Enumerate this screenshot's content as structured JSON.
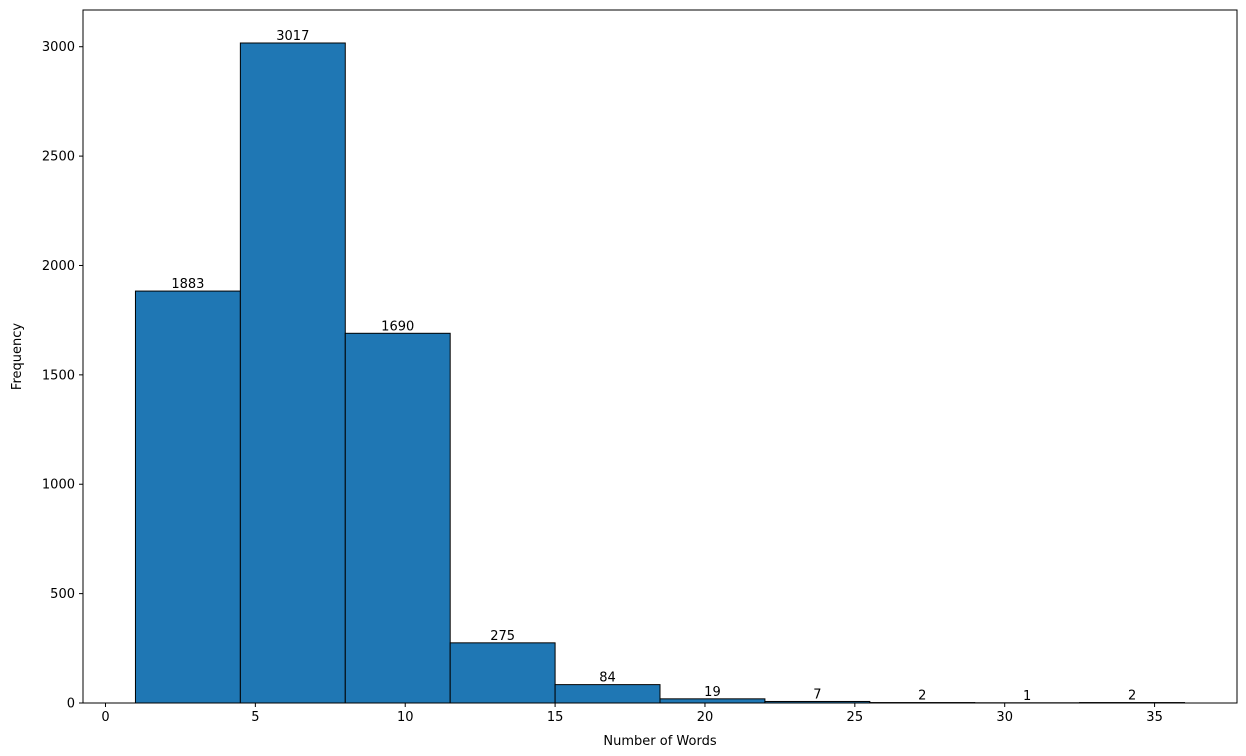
{
  "chart_data": {
    "type": "bar",
    "title": "",
    "xlabel": "Number of Words",
    "ylabel": "Frequency",
    "bin_edges": [
      1.0,
      4.5,
      8.0,
      11.5,
      15.0,
      18.5,
      22.0,
      25.5,
      29.0,
      32.5,
      36.0
    ],
    "values": [
      1883,
      3017,
      1690,
      275,
      84,
      19,
      7,
      2,
      1,
      2
    ],
    "bar_labels": [
      "1883",
      "3017",
      "1690",
      "275",
      "84",
      "19",
      "7",
      "2",
      "1",
      "2"
    ],
    "xlim": [
      -0.75,
      37.75
    ],
    "ylim": [
      0,
      3167.85
    ],
    "x_ticks": [
      0,
      5,
      10,
      15,
      20,
      25,
      30,
      35
    ],
    "x_tick_labels": [
      "0",
      "5",
      "10",
      "15",
      "20",
      "25",
      "30",
      "35"
    ],
    "y_ticks": [
      0,
      500,
      1000,
      1500,
      2000,
      2500,
      3000
    ],
    "y_tick_labels": [
      "0",
      "500",
      "1000",
      "1500",
      "2000",
      "2500",
      "3000"
    ],
    "grid": false,
    "legend": "none",
    "bar_color": "#1f77b4",
    "edge_color": "#000000"
  }
}
